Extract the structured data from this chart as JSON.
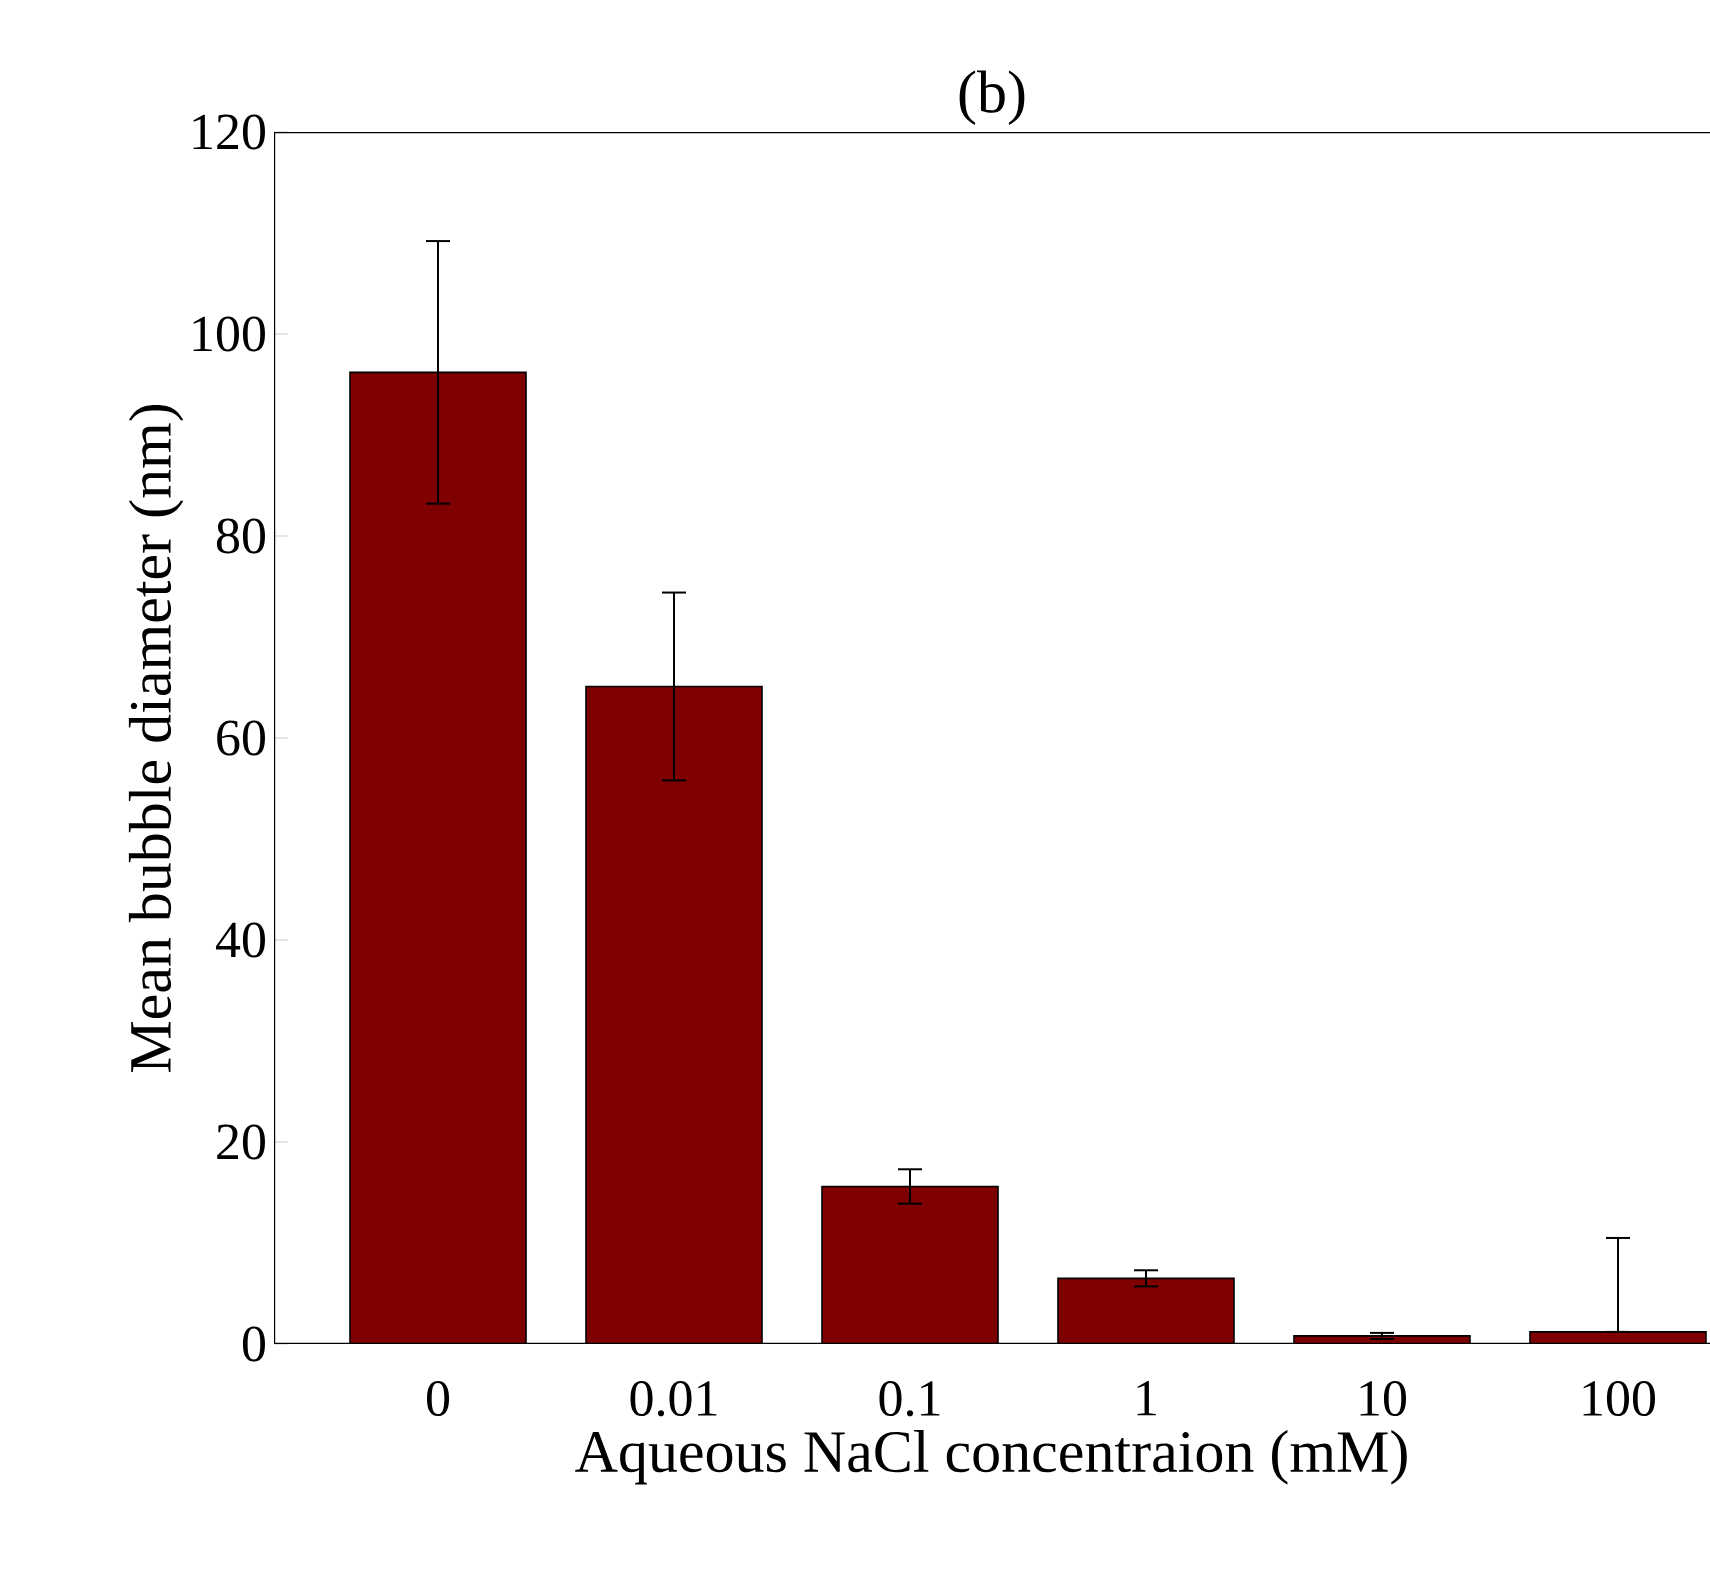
{
  "chart_data": {
    "type": "bar",
    "title": "(b)",
    "xlabel": "Aqueous NaCl concentraion (mM)",
    "ylabel": "Mean bubble diameter (nm)",
    "categories": [
      "0",
      "0.01",
      "0.1",
      "1",
      "10",
      "100"
    ],
    "values": [
      96.2,
      65.1,
      15.6,
      6.5,
      0.8,
      1.2
    ],
    "errors": [
      13,
      9.3,
      1.7,
      0.8,
      0.3,
      [
        1.2,
        10.5
      ]
    ],
    "color": "#7f0000",
    "ylim": [
      0,
      120
    ],
    "yticks": [
      0,
      20,
      40,
      60,
      80,
      100,
      120
    ]
  }
}
